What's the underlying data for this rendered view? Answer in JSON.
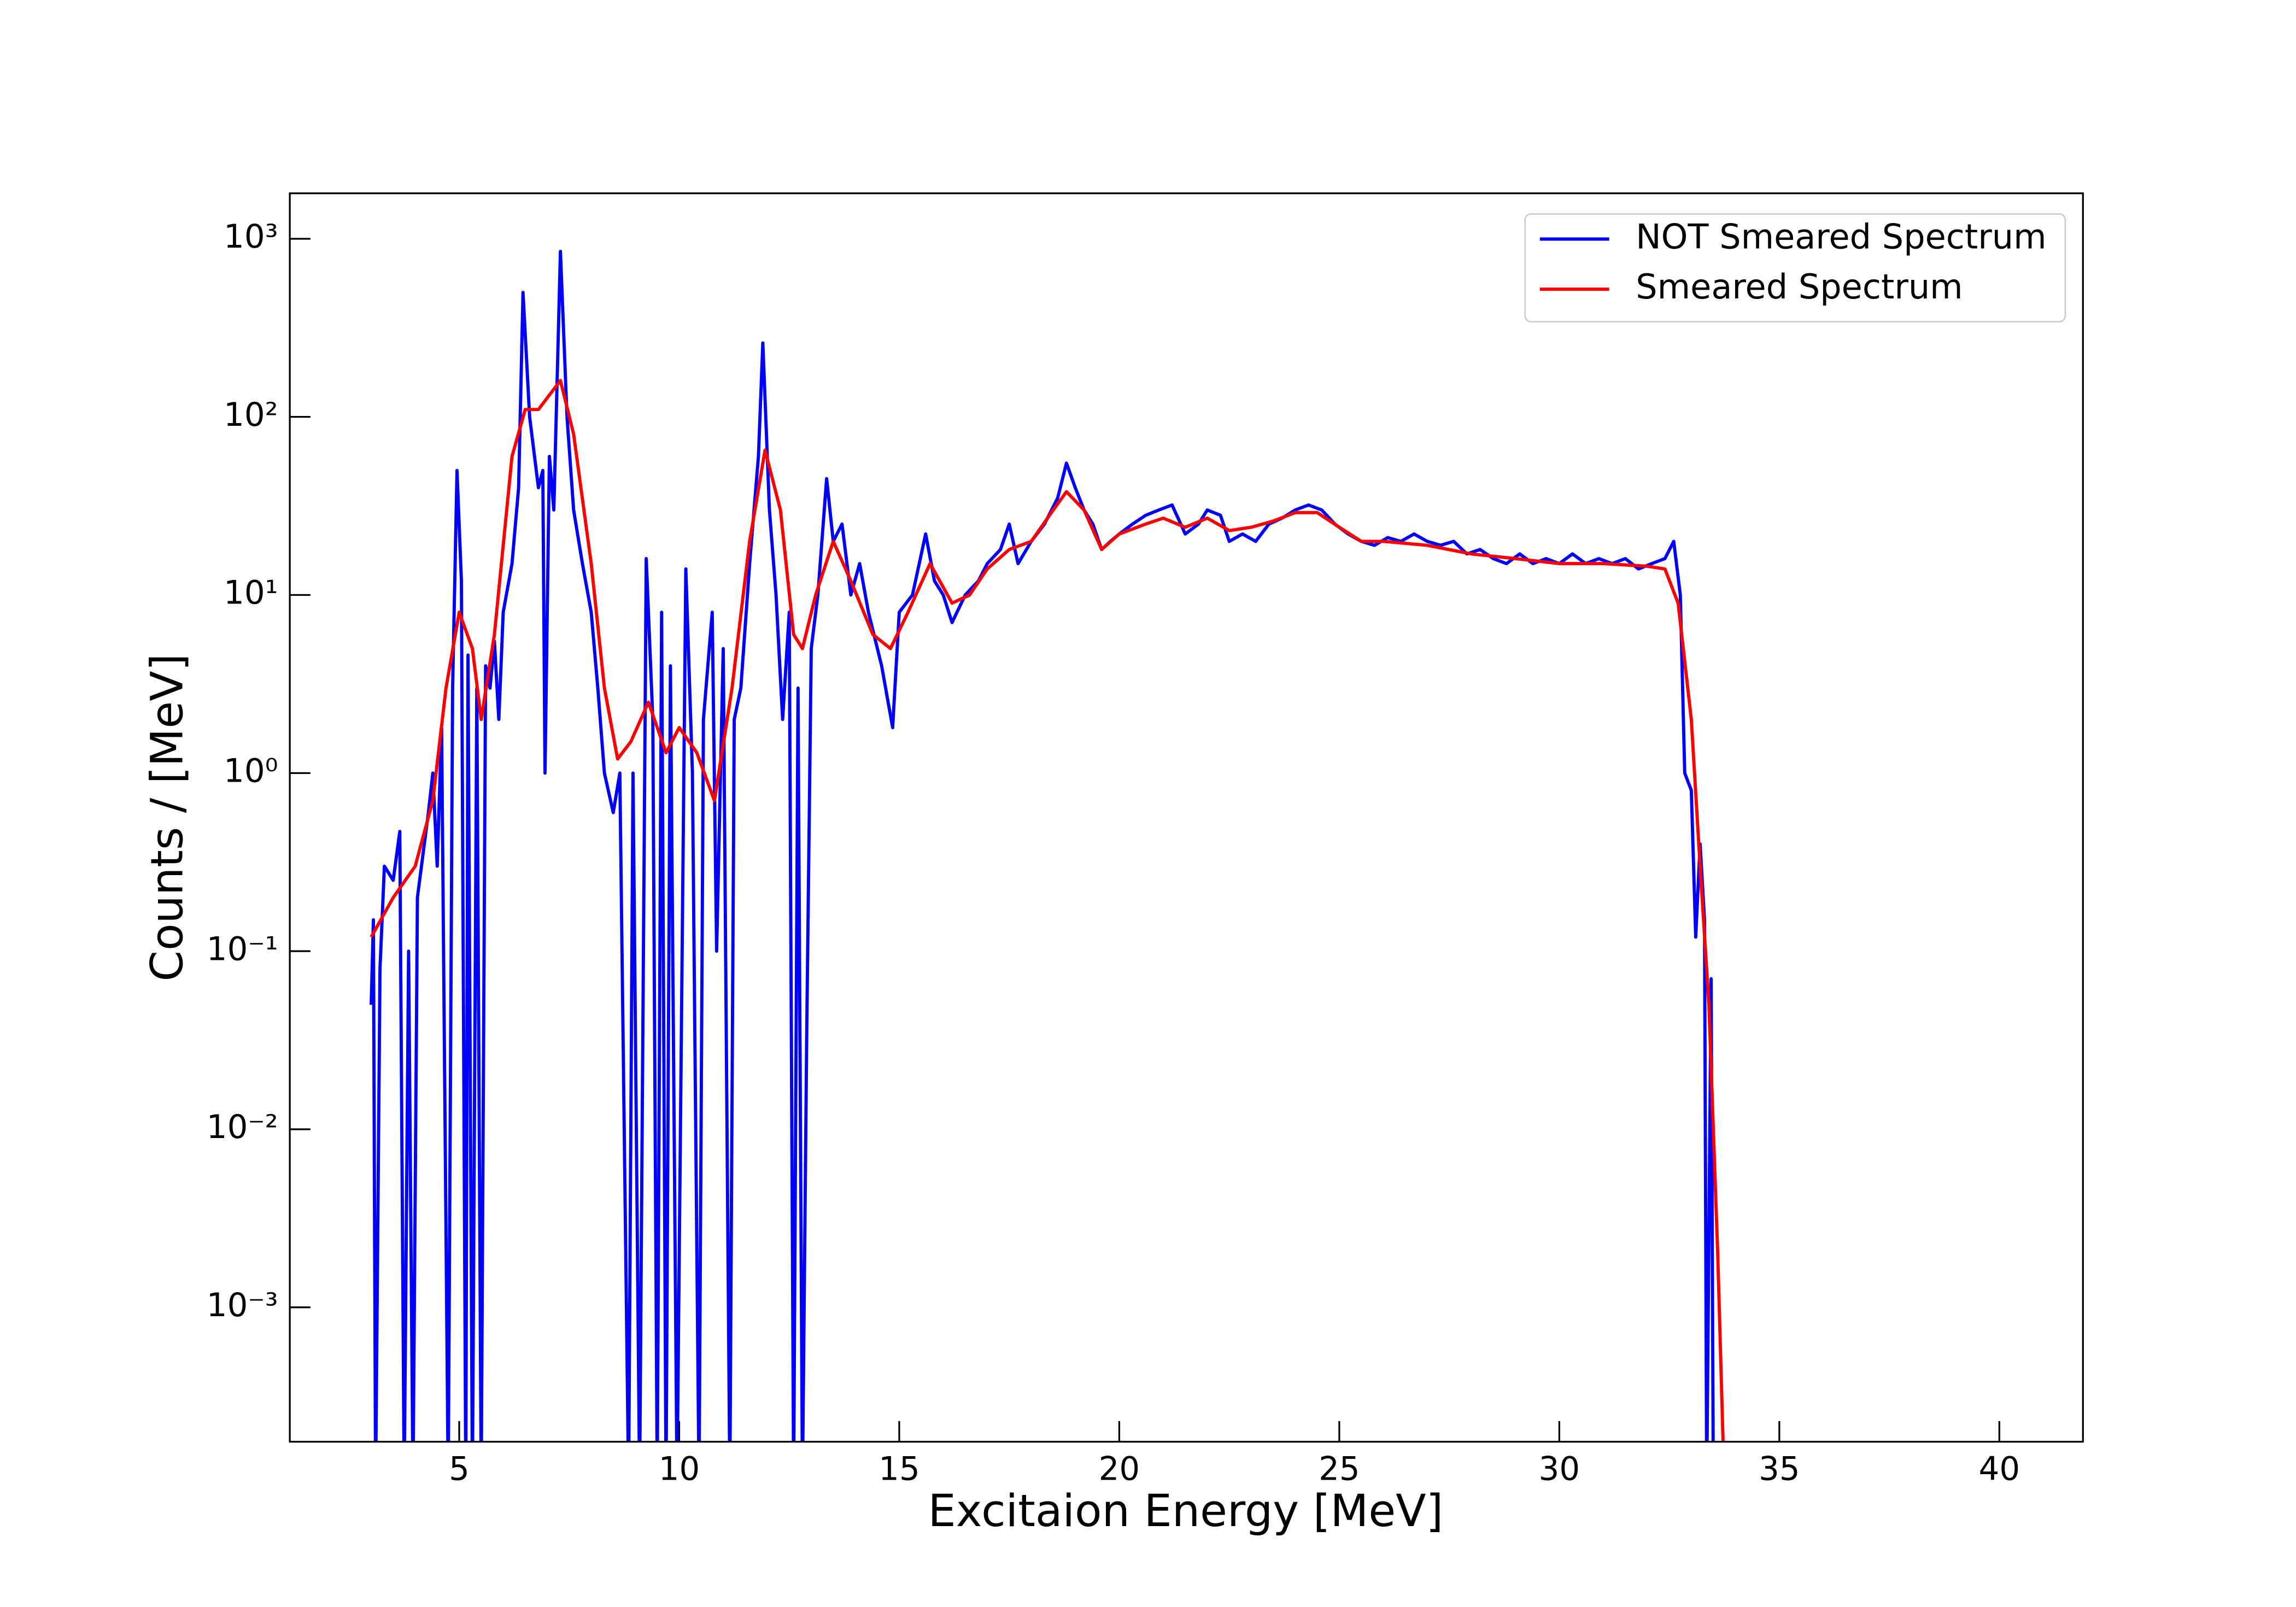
{
  "chart_data": {
    "type": "line",
    "xlabel": "Excitaion Energy [MeV]",
    "ylabel": "Counts / [MeV]",
    "xlim": [
      1.15,
      41.9
    ],
    "ylim": [
      0.000176,
      1800
    ],
    "yscale": "log",
    "xticks": [
      5,
      10,
      15,
      20,
      25,
      30,
      35,
      40
    ],
    "yticks": [
      {
        "value": 0.001,
        "label": "10⁻³"
      },
      {
        "value": 0.01,
        "label": "10⁻²"
      },
      {
        "value": 0.1,
        "label": "10⁻¹"
      },
      {
        "value": 1,
        "label": "10⁰"
      },
      {
        "value": 10,
        "label": "10¹"
      },
      {
        "value": 100,
        "label": "10²"
      },
      {
        "value": 1000,
        "label": "10³"
      }
    ],
    "legend": "upper right",
    "series": [
      {
        "name": "NOT Smeared Spectrum",
        "color": "#0000ff",
        "x": [
          3.0,
          3.05,
          3.1,
          3.2,
          3.3,
          3.5,
          3.65,
          3.75,
          3.85,
          3.95,
          4.05,
          4.3,
          4.4,
          4.5,
          4.6,
          4.75,
          4.85,
          4.95,
          5.05,
          5.15,
          5.2,
          5.3,
          5.4,
          5.5,
          5.6,
          5.7,
          5.8,
          5.9,
          6.0,
          6.2,
          6.35,
          6.45,
          6.6,
          6.8,
          6.9,
          6.95,
          7.05,
          7.15,
          7.3,
          7.45,
          7.6,
          7.8,
          8.0,
          8.15,
          8.3,
          8.5,
          8.65,
          8.85,
          8.95,
          9.1,
          9.25,
          9.4,
          9.5,
          9.6,
          9.7,
          9.8,
          9.95,
          10.15,
          10.3,
          10.45,
          10.55,
          10.75,
          10.85,
          11.0,
          11.15,
          11.25,
          11.4,
          11.6,
          11.8,
          11.9,
          12.05,
          12.2,
          12.35,
          12.5,
          12.6,
          12.7,
          12.8,
          12.9,
          13.0,
          13.15,
          13.35,
          13.5,
          13.7,
          13.9,
          14.1,
          14.3,
          14.6,
          14.85,
          15.0,
          15.3,
          15.6,
          15.8,
          16.0,
          16.2,
          16.5,
          16.8,
          17.0,
          17.3,
          17.5,
          17.7,
          18.0,
          18.3,
          18.6,
          18.8,
          19.0,
          19.2,
          19.4,
          19.6,
          19.8,
          20.0,
          20.3,
          20.6,
          20.9,
          21.2,
          21.5,
          21.8,
          22.0,
          22.3,
          22.5,
          22.8,
          23.1,
          23.4,
          23.7,
          24.0,
          24.3,
          24.6,
          24.9,
          25.2,
          25.5,
          25.8,
          26.1,
          26.4,
          26.7,
          27.0,
          27.3,
          27.6,
          27.9,
          28.2,
          28.5,
          28.8,
          29.1,
          29.4,
          29.7,
          30.0,
          30.3,
          30.6,
          30.9,
          31.2,
          31.5,
          31.8,
          32.1,
          32.4,
          32.6,
          32.75,
          32.85,
          33.0,
          33.1,
          33.2,
          33.3,
          33.35,
          33.45,
          33.5
        ],
        "values": [
          0.05,
          0.15,
          0.0001,
          0.08,
          0.3,
          0.25,
          0.47,
          0.0001,
          0.1,
          0.0001,
          0.2,
          0.6,
          1.0,
          0.3,
          1.8,
          0.0001,
          3,
          50,
          12,
          0.0001,
          4.6,
          0.0001,
          3,
          0.0001,
          4,
          3,
          5.5,
          2,
          8,
          15,
          40,
          500,
          100,
          40,
          50,
          1.0,
          60,
          30,
          850,
          100,
          30,
          15,
          8,
          3,
          1.0,
          0.6,
          1.0,
          0.0001,
          1.0,
          0.0001,
          16,
          2,
          0.0001,
          8,
          0.0001,
          4,
          0.0001,
          14,
          1,
          0.0001,
          2,
          8,
          0.1,
          5,
          0.0001,
          2,
          3,
          15,
          60,
          260,
          30,
          10,
          2,
          8,
          0.0001,
          3,
          0.0001,
          0.04,
          5,
          10,
          45,
          20,
          25,
          10,
          15,
          8,
          4,
          1.8,
          8,
          10,
          22,
          12,
          10,
          7,
          10,
          12,
          15,
          18,
          25,
          15,
          20,
          25,
          35,
          55,
          40,
          30,
          25,
          18,
          20,
          22,
          25,
          28,
          30,
          32,
          22,
          25,
          30,
          28,
          20,
          22,
          20,
          25,
          27,
          30,
          32,
          30,
          25,
          22,
          20,
          19,
          21,
          20,
          22,
          20,
          19,
          20,
          17,
          18,
          16,
          15,
          17,
          15,
          16,
          15,
          17,
          15,
          16,
          15,
          16,
          14,
          15,
          16,
          20,
          10,
          1.0,
          0.8,
          0.12,
          0.4,
          0.15,
          0.0001,
          0.07,
          0.0001
        ]
      },
      {
        "name": "Smeared Spectrum",
        "color": "#ff0000",
        "x": [
          3.0,
          3.5,
          4.0,
          4.4,
          4.7,
          5.0,
          5.3,
          5.5,
          5.8,
          6.2,
          6.5,
          6.8,
          7.3,
          7.6,
          8.0,
          8.3,
          8.6,
          8.9,
          9.3,
          9.7,
          10.0,
          10.4,
          10.8,
          11.2,
          11.6,
          11.95,
          12.3,
          12.6,
          12.8,
          13.1,
          13.5,
          13.9,
          14.4,
          14.8,
          15.2,
          15.7,
          16.2,
          16.6,
          17.0,
          17.5,
          18.0,
          18.5,
          18.8,
          19.2,
          19.6,
          20.0,
          20.6,
          21.0,
          21.5,
          22.0,
          22.5,
          23.0,
          23.5,
          24.0,
          24.5,
          25.0,
          25.5,
          26.0,
          27.0,
          28.0,
          29.0,
          30.0,
          31.0,
          32.0,
          32.4,
          32.7,
          33.0,
          33.2,
          33.4,
          33.6,
          33.75
        ],
        "values": [
          0.12,
          0.2,
          0.3,
          0.7,
          3,
          8,
          5,
          2,
          6,
          60,
          110,
          110,
          160,
          80,
          15,
          3,
          1.2,
          1.5,
          2.5,
          1.3,
          1.8,
          1.3,
          0.7,
          3,
          20,
          65,
          30,
          6,
          5,
          10,
          20,
          12,
          6,
          5,
          8,
          15,
          9,
          10,
          14,
          18,
          20,
          30,
          38,
          30,
          18,
          22,
          25,
          27,
          24,
          27,
          23,
          24,
          26,
          29,
          29,
          24,
          20,
          20,
          19,
          17,
          16,
          15,
          15,
          14.5,
          14,
          9,
          2,
          0.3,
          0.05,
          0.002,
          0.0001
        ]
      }
    ]
  }
}
